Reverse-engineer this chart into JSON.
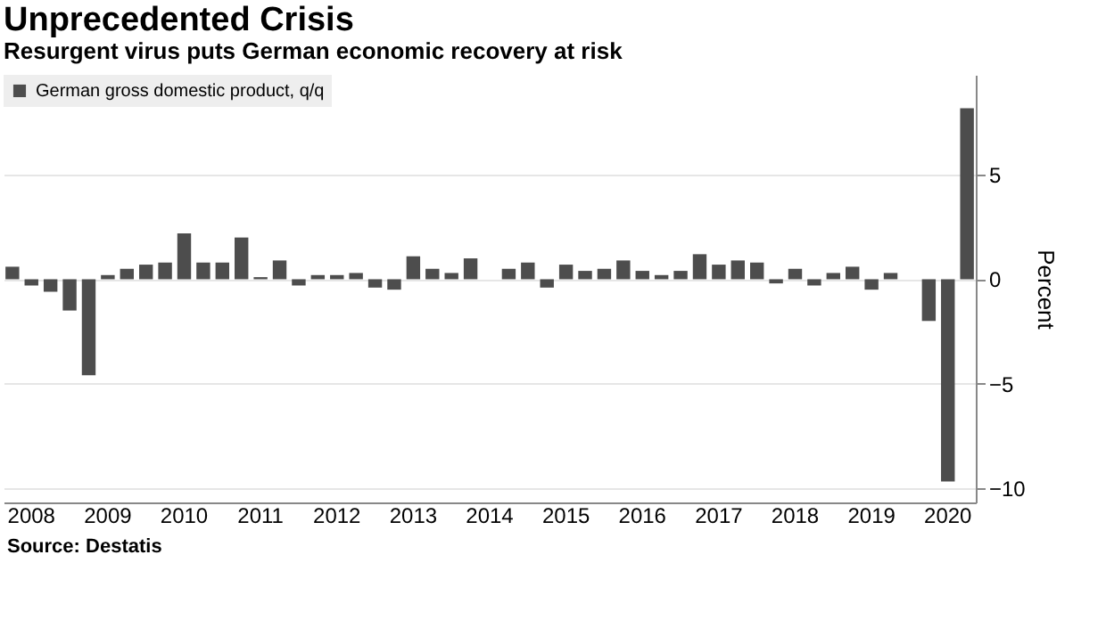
{
  "chart_data": {
    "type": "bar",
    "title": "Unprecedented Crisis",
    "subtitle": "Resurgent virus puts German economic recovery at risk",
    "ylabel": "Percent",
    "categories": [
      null,
      "2008",
      null,
      null,
      null,
      "2009",
      null,
      null,
      null,
      "2010",
      null,
      null,
      null,
      "2011",
      null,
      null,
      null,
      "2012",
      null,
      null,
      null,
      "2013",
      null,
      null,
      null,
      "2014",
      null,
      null,
      null,
      "2015",
      null,
      null,
      null,
      "2016",
      null,
      null,
      null,
      "2017",
      null,
      null,
      null,
      "2018",
      null,
      null,
      null,
      "2019",
      null,
      null,
      null,
      "2020",
      null
    ],
    "series": [
      {
        "name": "German gross domestic product, q/q",
        "color": "#4d4d4d",
        "values": [
          0.6,
          -0.3,
          -0.6,
          -1.5,
          -4.6,
          0.2,
          0.5,
          0.7,
          0.8,
          2.2,
          0.8,
          0.8,
          2.0,
          0.1,
          0.9,
          -0.3,
          0.2,
          0.2,
          0.3,
          -0.4,
          -0.5,
          1.1,
          0.5,
          0.3,
          1.0,
          0.0,
          0.5,
          0.8,
          -0.4,
          0.7,
          0.4,
          0.5,
          0.9,
          0.4,
          0.2,
          0.4,
          1.2,
          0.7,
          0.9,
          0.8,
          -0.2,
          0.5,
          -0.3,
          0.3,
          0.6,
          -0.5,
          0.3,
          0.0,
          -2.0,
          -9.7,
          8.2
        ]
      }
    ],
    "ylim": [
      -10.7,
      9.8
    ],
    "yticks": [
      -10,
      -5,
      0,
      5
    ],
    "grid": "y",
    "legend": "top left",
    "annotations": [
      "Source: Destatis"
    ]
  }
}
